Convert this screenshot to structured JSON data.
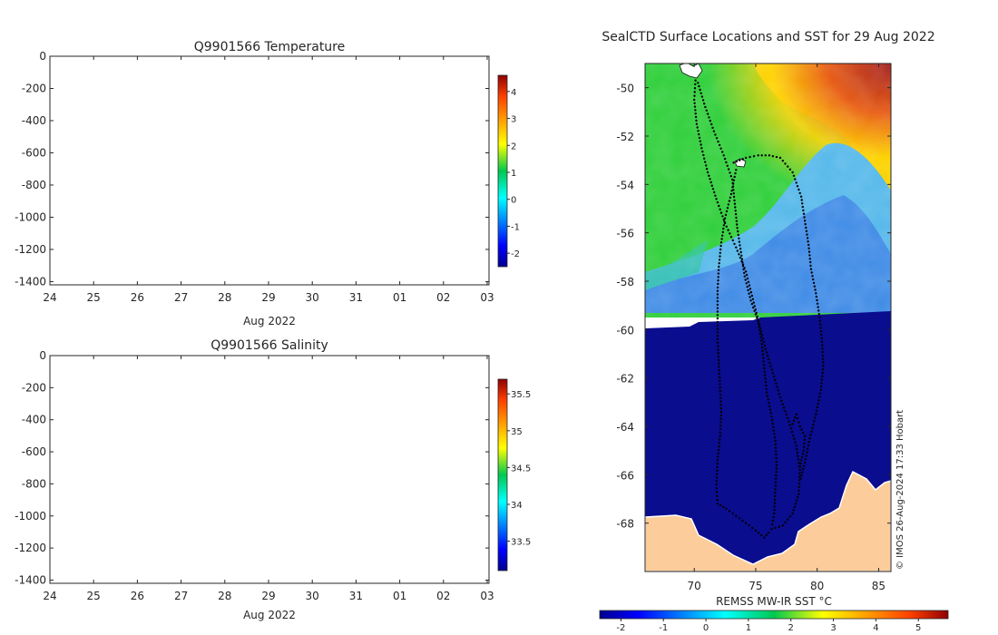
{
  "chart_data": [
    {
      "type": "heatmap",
      "panel": "temperature-profile",
      "title": "Q9901566  Temperature",
      "ylim": [
        -1420,
        0
      ],
      "yticks": [
        0,
        -200,
        -400,
        -600,
        -800,
        -1000,
        -1200,
        -1400
      ],
      "xtick_labels": [
        "24",
        "25",
        "26",
        "27",
        "28",
        "29",
        "30",
        "31",
        "01",
        "02",
        "03"
      ],
      "xlabel": "Aug 2022",
      "series": [],
      "colorbar": {
        "min": -2.5,
        "max": 4.6,
        "tick_values": [
          -2,
          -1,
          0,
          1,
          2,
          3,
          4
        ],
        "tick_labels": [
          "-2",
          "-1",
          "0",
          "1",
          "2",
          "3",
          "4"
        ]
      }
    },
    {
      "type": "heatmap",
      "panel": "salinity-profile",
      "title": "Q9901566  Salinity",
      "ylim": [
        -1420,
        0
      ],
      "yticks": [
        0,
        -200,
        -400,
        -600,
        -800,
        -1000,
        -1200,
        -1400
      ],
      "xtick_labels": [
        "24",
        "25",
        "26",
        "27",
        "28",
        "29",
        "30",
        "31",
        "01",
        "02",
        "03"
      ],
      "xlabel": "Aug 2022",
      "series": [],
      "colorbar": {
        "min": 33.1,
        "max": 35.7,
        "tick_values": [
          33.5,
          34,
          34.5,
          35,
          35.5
        ],
        "tick_labels": [
          "33.5",
          "34",
          "34.5",
          "35",
          "35.5"
        ]
      }
    },
    {
      "type": "heatmap",
      "panel": "sst-map",
      "title": "SealCTD Surface Locations and SST for 29 Aug 2022",
      "xlim": [
        66,
        86
      ],
      "ylim": [
        -70,
        -49
      ],
      "xtick_values": [
        70,
        75,
        80,
        85
      ],
      "xtick_labels": [
        "70",
        "75",
        "80",
        "85"
      ],
      "ytick_values": [
        -50,
        -52,
        -54,
        -56,
        -58,
        -60,
        -62,
        -64,
        -66,
        -68
      ],
      "ytick_labels": [
        "-50",
        "-52",
        "-54",
        "-56",
        "-58",
        "-60",
        "-62",
        "-64",
        "-66",
        "-68"
      ],
      "credit": "© IMOS 26-Aug-2024 17:33 Hobart",
      "colorbar": {
        "label": "REMSS MW-IR SST °C",
        "min": -2.5,
        "max": 5.7,
        "tick_values": [
          -2,
          -1,
          0,
          1,
          2,
          3,
          4,
          5
        ],
        "tick_labels": [
          "-2",
          "-1",
          "0",
          "1",
          "2",
          "3",
          "4",
          "5"
        ]
      },
      "tracks": [
        {
          "name": "track-a",
          "points": [
            [
              70.1,
              -49.7
            ],
            [
              70.0,
              -50.5
            ],
            [
              70.2,
              -51.5
            ],
            [
              70.6,
              -52.5
            ],
            [
              71.1,
              -53.5
            ],
            [
              71.8,
              -54.6
            ],
            [
              72.5,
              -55.6
            ],
            [
              73.4,
              -56.6
            ],
            [
              74.2,
              -57.6
            ],
            [
              74.7,
              -58.6
            ],
            [
              75.2,
              -59.6
            ],
            [
              75.5,
              -60.6
            ],
            [
              75.7,
              -61.6
            ],
            [
              75.9,
              -62.6
            ],
            [
              76.3,
              -63.6
            ],
            [
              76.6,
              -64.6
            ],
            [
              76.7,
              -65.6
            ],
            [
              76.6,
              -66.6
            ],
            [
              76.5,
              -67.6
            ],
            [
              76.3,
              -68.2
            ]
          ]
        },
        {
          "name": "track-b",
          "points": [
            [
              70.3,
              -49.8
            ],
            [
              70.9,
              -50.8
            ],
            [
              71.6,
              -51.8
            ],
            [
              72.4,
              -52.8
            ],
            [
              73.1,
              -53.8
            ],
            [
              73.3,
              -54.8
            ],
            [
              73.5,
              -55.8
            ],
            [
              73.8,
              -56.8
            ],
            [
              74.1,
              -57.8
            ],
            [
              74.6,
              -58.8
            ],
            [
              75.3,
              -59.8
            ],
            [
              75.8,
              -60.8
            ],
            [
              76.4,
              -61.8
            ],
            [
              77.0,
              -62.8
            ],
            [
              77.7,
              -63.8
            ],
            [
              78.3,
              -64.8
            ],
            [
              78.6,
              -65.8
            ],
            [
              78.5,
              -66.8
            ],
            [
              78.0,
              -67.6
            ],
            [
              77.2,
              -68.1
            ],
            [
              76.0,
              -68.3
            ]
          ]
        },
        {
          "name": "track-c",
          "points": [
            [
              73.2,
              -53.1
            ],
            [
              74.2,
              -52.9
            ],
            [
              75.2,
              -52.8
            ],
            [
              76.1,
              -52.8
            ],
            [
              77.0,
              -52.9
            ],
            [
              78.0,
              -53.5
            ],
            [
              78.7,
              -54.5
            ],
            [
              79.0,
              -55.5
            ],
            [
              79.3,
              -56.5
            ],
            [
              79.5,
              -57.5
            ],
            [
              79.9,
              -58.5
            ],
            [
              80.2,
              -59.5
            ],
            [
              80.4,
              -60.5
            ],
            [
              80.5,
              -61.5
            ],
            [
              80.3,
              -62.5
            ],
            [
              79.9,
              -63.5
            ],
            [
              79.4,
              -64.5
            ],
            [
              79.0,
              -65.5
            ],
            [
              78.6,
              -66.3
            ]
          ]
        },
        {
          "name": "track-d",
          "points": [
            [
              73.4,
              -53.4
            ],
            [
              73.0,
              -54.4
            ],
            [
              72.5,
              -55.4
            ],
            [
              72.2,
              -56.4
            ],
            [
              72.0,
              -57.4
            ],
            [
              71.9,
              -58.4
            ],
            [
              71.9,
              -59.4
            ],
            [
              71.9,
              -60.4
            ],
            [
              72.0,
              -61.4
            ],
            [
              72.1,
              -62.4
            ],
            [
              72.2,
              -63.4
            ],
            [
              72.1,
              -64.4
            ],
            [
              71.9,
              -65.4
            ],
            [
              71.8,
              -66.4
            ],
            [
              71.9,
              -67.2
            ],
            [
              72.6,
              -67.4
            ],
            [
              73.4,
              -67.7
            ],
            [
              74.2,
              -68.0
            ],
            [
              75.0,
              -68.3
            ],
            [
              75.7,
              -68.6
            ],
            [
              76.2,
              -68.3
            ]
          ]
        },
        {
          "name": "track-e",
          "points": [
            [
              78.0,
              -63.9
            ],
            [
              78.3,
              -63.5
            ],
            [
              78.6,
              -64.0
            ],
            [
              79.0,
              -64.4
            ],
            [
              78.9,
              -65.0
            ],
            [
              78.7,
              -65.4
            ],
            [
              78.6,
              -65.8
            ]
          ]
        }
      ]
    }
  ]
}
